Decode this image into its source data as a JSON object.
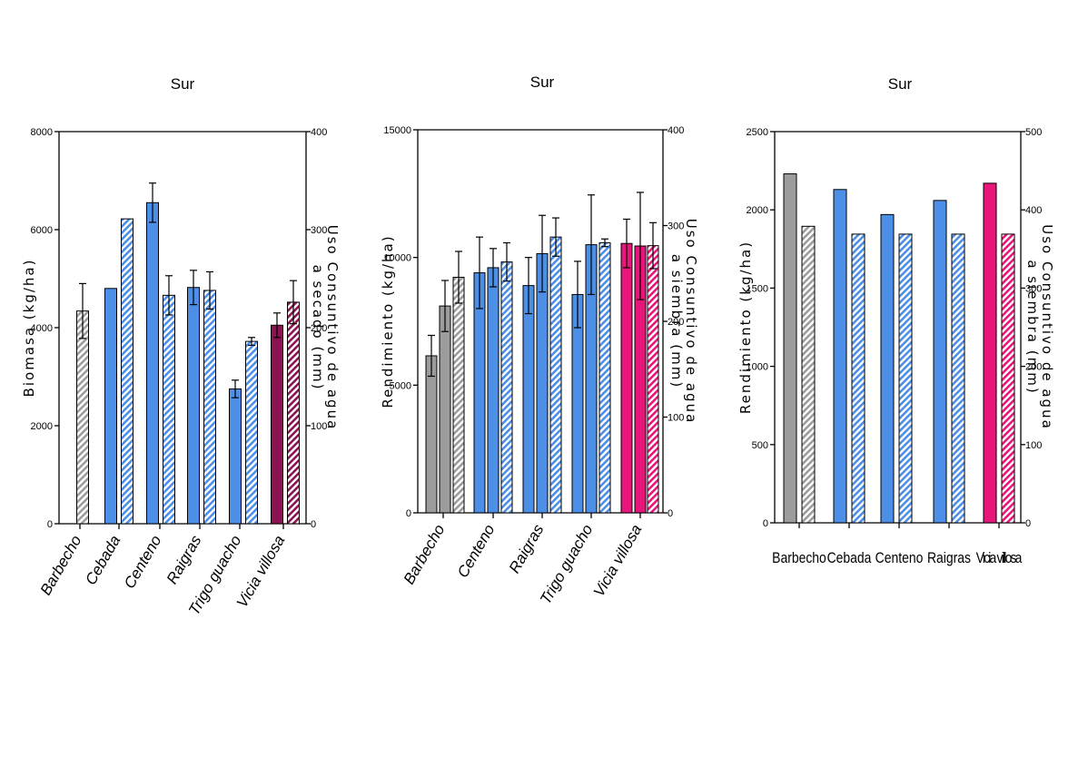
{
  "colors": {
    "gray": "#9c9c9c",
    "blue": "#4d8fe6",
    "maroon": "#8a1452",
    "pink": "#e8157a",
    "hatch_bg": "#ffffff"
  },
  "chart_data": [
    {
      "type": "bar",
      "title": "Sur",
      "ylabel": "Biomasa (kg/ha)",
      "y2label_lines": [
        "Uso Consuntivo de agua",
        "a secado (mm)"
      ],
      "ylim": [
        0,
        8000
      ],
      "yticks": [
        0,
        2000,
        4000,
        6000,
        8000
      ],
      "y2lim": [
        0,
        400
      ],
      "y2ticks": [
        0,
        100,
        200,
        300,
        400
      ],
      "categories": [
        "Barbecho",
        "Cebada",
        "Centeno",
        "Raigras",
        "Trigo guacho",
        "Vicia villosa"
      ],
      "bars": [
        {
          "category": "Barbecho",
          "series": "Uso consuntivo",
          "axis": "right",
          "value": 217,
          "err": 28,
          "color": "gray",
          "hatched": true
        },
        {
          "category": "Cebada",
          "series": "Biomasa",
          "axis": "left",
          "value": 4800,
          "err": 0,
          "color": "blue",
          "hatched": false
        },
        {
          "category": "Cebada",
          "series": "Uso consuntivo",
          "axis": "right",
          "value": 311,
          "err": 0,
          "color": "blue",
          "hatched": true
        },
        {
          "category": "Centeno",
          "series": "Biomasa",
          "axis": "left",
          "value": 6550,
          "err": 400,
          "color": "blue",
          "hatched": false
        },
        {
          "category": "Centeno",
          "series": "Uso consuntivo",
          "axis": "right",
          "value": 233,
          "err": 20,
          "color": "blue",
          "hatched": true
        },
        {
          "category": "Raigras",
          "series": "Biomasa",
          "axis": "left",
          "value": 4820,
          "err": 350,
          "color": "blue",
          "hatched": false
        },
        {
          "category": "Raigras",
          "series": "Uso consuntivo",
          "axis": "right",
          "value": 238,
          "err": 19,
          "color": "blue",
          "hatched": true
        },
        {
          "category": "Trigo guacho",
          "series": "Biomasa",
          "axis": "left",
          "value": 2750,
          "err": 180,
          "color": "blue",
          "hatched": false
        },
        {
          "category": "Trigo guacho",
          "series": "Uso consuntivo",
          "axis": "right",
          "value": 186,
          "err": 4,
          "color": "blue",
          "hatched": true
        },
        {
          "category": "Vicia villosa",
          "series": "Biomasa",
          "axis": "left",
          "value": 4050,
          "err": 250,
          "color": "maroon",
          "hatched": false
        },
        {
          "category": "Vicia villosa",
          "series": "Uso consuntivo",
          "axis": "right",
          "value": 226,
          "err": 22,
          "color": "maroon",
          "hatched": true
        }
      ]
    },
    {
      "type": "bar",
      "title": "Sur",
      "ylabel": "Rendimiento (kg/ha)",
      "y2label_lines": [
        "Uso Consuntivo de agua",
        "a siembra (mm)"
      ],
      "ylim": [
        0,
        15000
      ],
      "yticks": [
        0,
        5000,
        10000,
        15000
      ],
      "y2lim": [
        0,
        400
      ],
      "y2ticks": [
        0,
        100,
        200,
        300,
        400
      ],
      "categories": [
        "Barbecho",
        "Centeno",
        "Raigras",
        "Trigo guacho",
        "Vicia villosa"
      ],
      "bars": [
        {
          "category": "Barbecho",
          "series": "Rendimiento 1",
          "axis": "left",
          "value": 6150,
          "err": 800,
          "color": "gray",
          "hatched": false
        },
        {
          "category": "Barbecho",
          "series": "Rendimiento 2",
          "axis": "left",
          "value": 8100,
          "err": 1000,
          "color": "gray",
          "hatched": false
        },
        {
          "category": "Barbecho",
          "series": "Uso consuntivo",
          "axis": "right",
          "value": 246,
          "err": 27,
          "color": "gray",
          "hatched": true
        },
        {
          "category": "Centeno",
          "series": "Rendimiento 1",
          "axis": "left",
          "value": 9400,
          "err": 1400,
          "color": "blue",
          "hatched": false
        },
        {
          "category": "Centeno",
          "series": "Rendimiento 2",
          "axis": "left",
          "value": 9600,
          "err": 750,
          "color": "blue",
          "hatched": false
        },
        {
          "category": "Centeno",
          "series": "Uso consuntivo",
          "axis": "right",
          "value": 262,
          "err": 20,
          "color": "blue",
          "hatched": true
        },
        {
          "category": "Raigras",
          "series": "Rendimiento 1",
          "axis": "left",
          "value": 8900,
          "err": 1100,
          "color": "blue",
          "hatched": false
        },
        {
          "category": "Raigras",
          "series": "Rendimiento 2",
          "axis": "left",
          "value": 10150,
          "err": 1500,
          "color": "blue",
          "hatched": false
        },
        {
          "category": "Raigras",
          "series": "Uso consuntivo",
          "axis": "right",
          "value": 288,
          "err": 20,
          "color": "blue",
          "hatched": true
        },
        {
          "category": "Trigo guacho",
          "series": "Rendimiento 1",
          "axis": "left",
          "value": 8550,
          "err": 1300,
          "color": "blue",
          "hatched": false
        },
        {
          "category": "Trigo guacho",
          "series": "Rendimiento 2",
          "axis": "left",
          "value": 10500,
          "err": 1950,
          "color": "blue",
          "hatched": false
        },
        {
          "category": "Trigo guacho",
          "series": "Uso consuntivo",
          "axis": "right",
          "value": 282,
          "err": 4,
          "color": "blue",
          "hatched": true
        },
        {
          "category": "Vicia villosa",
          "series": "Rendimiento 1",
          "axis": "left",
          "value": 10550,
          "err": 950,
          "color": "pink",
          "hatched": false
        },
        {
          "category": "Vicia villosa",
          "series": "Rendimiento 2",
          "axis": "left",
          "value": 10450,
          "err": 2100,
          "color": "pink",
          "hatched": false
        },
        {
          "category": "Vicia villosa",
          "series": "Uso consuntivo",
          "axis": "right",
          "value": 279,
          "err": 24,
          "color": "pink",
          "hatched": true
        }
      ]
    },
    {
      "type": "bar",
      "title": "Sur",
      "ylabel": "Rendimiento (kg/ha)",
      "y2label_lines": [
        "Uso Consuntivo de agua",
        "a siembra (mm)"
      ],
      "ylim": [
        0,
        2500
      ],
      "yticks": [
        0,
        500,
        1000,
        1500,
        2000,
        2500
      ],
      "y2lim": [
        0,
        500
      ],
      "y2ticks": [
        0,
        100,
        200,
        300,
        400,
        500
      ],
      "categories": [
        "Barbecho",
        "Cebada",
        "Centeno",
        "Raigras",
        "Vicia villosa"
      ],
      "bars": [
        {
          "category": "Barbecho",
          "series": "Rendimiento",
          "axis": "left",
          "value": 2230,
          "err": 0,
          "color": "gray",
          "hatched": false
        },
        {
          "category": "Barbecho",
          "series": "Uso consuntivo",
          "axis": "right",
          "value": 379,
          "err": 0,
          "color": "gray",
          "hatched": true
        },
        {
          "category": "Cebada",
          "series": "Rendimiento",
          "axis": "left",
          "value": 2130,
          "err": 0,
          "color": "blue",
          "hatched": false
        },
        {
          "category": "Cebada",
          "series": "Uso consuntivo",
          "axis": "right",
          "value": 369,
          "err": 0,
          "color": "blue",
          "hatched": true
        },
        {
          "category": "Centeno",
          "series": "Rendimiento",
          "axis": "left",
          "value": 1970,
          "err": 0,
          "color": "blue",
          "hatched": false
        },
        {
          "category": "Centeno",
          "series": "Uso consuntivo",
          "axis": "right",
          "value": 369,
          "err": 0,
          "color": "blue",
          "hatched": true
        },
        {
          "category": "Raigras",
          "series": "Rendimiento",
          "axis": "left",
          "value": 2060,
          "err": 0,
          "color": "blue",
          "hatched": false
        },
        {
          "category": "Raigras",
          "series": "Uso consuntivo",
          "axis": "right",
          "value": 369,
          "err": 0,
          "color": "blue",
          "hatched": true
        },
        {
          "category": "Vicia villosa",
          "series": "Rendimiento",
          "axis": "left",
          "value": 2170,
          "err": 0,
          "color": "pink",
          "hatched": false
        },
        {
          "category": "Vicia villosa",
          "series": "Uso consuntivo",
          "axis": "right",
          "value": 369,
          "err": 0,
          "color": "pink",
          "hatched": true
        }
      ]
    }
  ]
}
